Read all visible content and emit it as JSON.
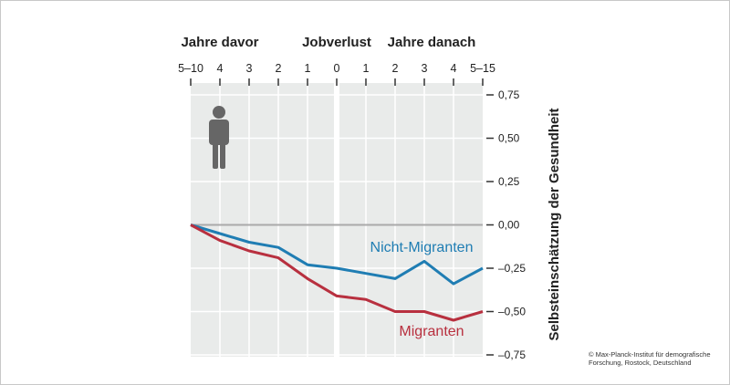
{
  "chart_data": {
    "type": "line",
    "top_labels": [
      "Jahre davor",
      "Jobverlust",
      "Jahre danach"
    ],
    "categories": [
      "5–10",
      "4",
      "3",
      "2",
      "1",
      "0",
      "1",
      "2",
      "3",
      "4",
      "5–15"
    ],
    "ylabel": "Selbsteinschätzung der Gesundheit",
    "ylim": [
      -0.75,
      0.75
    ],
    "yticks": [
      0.75,
      0.5,
      0.25,
      0,
      -0.25,
      -0.5,
      -0.75
    ],
    "ytick_labels": [
      "0,75",
      "0,50",
      "0,25",
      "0,00",
      "–0,25",
      "–0,50",
      "–0,75"
    ],
    "grid": true,
    "series": [
      {
        "name": "Nicht-Migranten",
        "color": "#1f7db3",
        "values": [
          0,
          -0.05,
          -0.1,
          -0.13,
          -0.23,
          -0.25,
          -0.28,
          -0.31,
          -0.21,
          -0.34,
          -0.25
        ]
      },
      {
        "name": "Migranten",
        "color": "#b8303f",
        "values": [
          0,
          -0.09,
          -0.15,
          -0.19,
          -0.31,
          -0.41,
          -0.43,
          -0.5,
          -0.5,
          -0.55,
          -0.5
        ]
      }
    ]
  },
  "credit": [
    "© Max-Planck-Institut für demografische",
    "Forschung, Rostock, Deutschland"
  ]
}
